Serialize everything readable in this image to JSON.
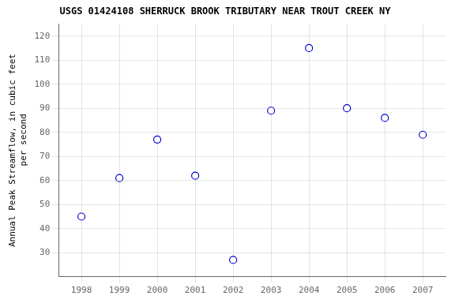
{
  "chart_data": {
    "type": "scatter",
    "title": "USGS 01424108 SHERRUCK BROOK TRIBUTARY NEAR TROUT CREEK NY",
    "ylabel": "Annual Peak Streamflow, in cubic feet\n    per second",
    "x": [
      1998,
      1999,
      2000,
      2001,
      2002,
      2003,
      2004,
      2005,
      2006,
      2007
    ],
    "values": [
      45,
      61,
      77,
      62,
      27,
      89,
      115,
      90,
      86,
      79
    ],
    "xlim": [
      1997.4,
      2007.6
    ],
    "ylim": [
      20,
      125
    ],
    "xticks": [
      1998,
      1999,
      2000,
      2001,
      2002,
      2003,
      2004,
      2005,
      2006,
      2007
    ],
    "yticks": [
      30,
      40,
      50,
      60,
      70,
      80,
      90,
      100,
      110,
      120
    ],
    "color": "#0000CC",
    "marker": "circle",
    "grid": true
  }
}
